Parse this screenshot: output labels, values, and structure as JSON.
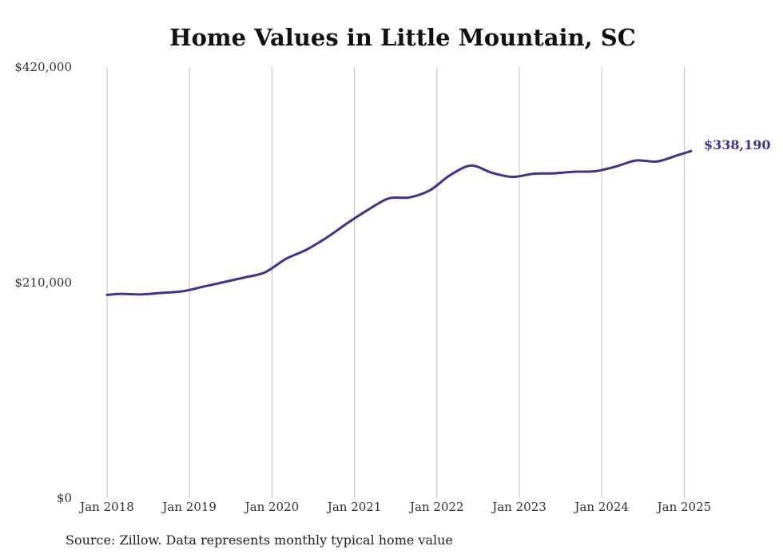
{
  "chart_data": {
    "type": "line",
    "title": "Home Values in Little Mountain, SC",
    "source": "Source: Zillow. Data represents monthly typical home value",
    "ylim": [
      0,
      420000
    ],
    "y_ticks": [
      "$0",
      "$210,000",
      "$420,000"
    ],
    "x_ticks": [
      "Jan 2018",
      "Jan 2019",
      "Jan 2020",
      "Jan 2021",
      "Jan 2022",
      "Jan 2023",
      "Jan 2024",
      "Jan 2025"
    ],
    "grid": "vertical",
    "line_color": "#3a3390",
    "end_label": "$338,190",
    "series": [
      {
        "x": [
          "2018-01",
          "2018-03",
          "2018-06",
          "2018-09",
          "2018-12",
          "2019-03",
          "2019-06",
          "2019-09",
          "2019-12",
          "2020-03",
          "2020-06",
          "2020-09",
          "2020-12",
          "2021-03",
          "2021-06",
          "2021-09",
          "2021-12",
          "2022-03",
          "2022-06",
          "2022-09",
          "2022-12",
          "2023-03",
          "2023-06",
          "2023-09",
          "2023-12",
          "2024-03",
          "2024-06",
          "2024-09",
          "2024-12",
          "2025-02"
        ],
        "values": [
          198000,
          199000,
          198500,
          200000,
          201500,
          206000,
          210500,
          215000,
          220000,
          233000,
          242000,
          254000,
          268000,
          281000,
          292000,
          293000,
          300000,
          315000,
          324000,
          317000,
          313000,
          316000,
          316500,
          318000,
          318500,
          323000,
          329000,
          328000,
          334000,
          338190
        ]
      }
    ]
  }
}
